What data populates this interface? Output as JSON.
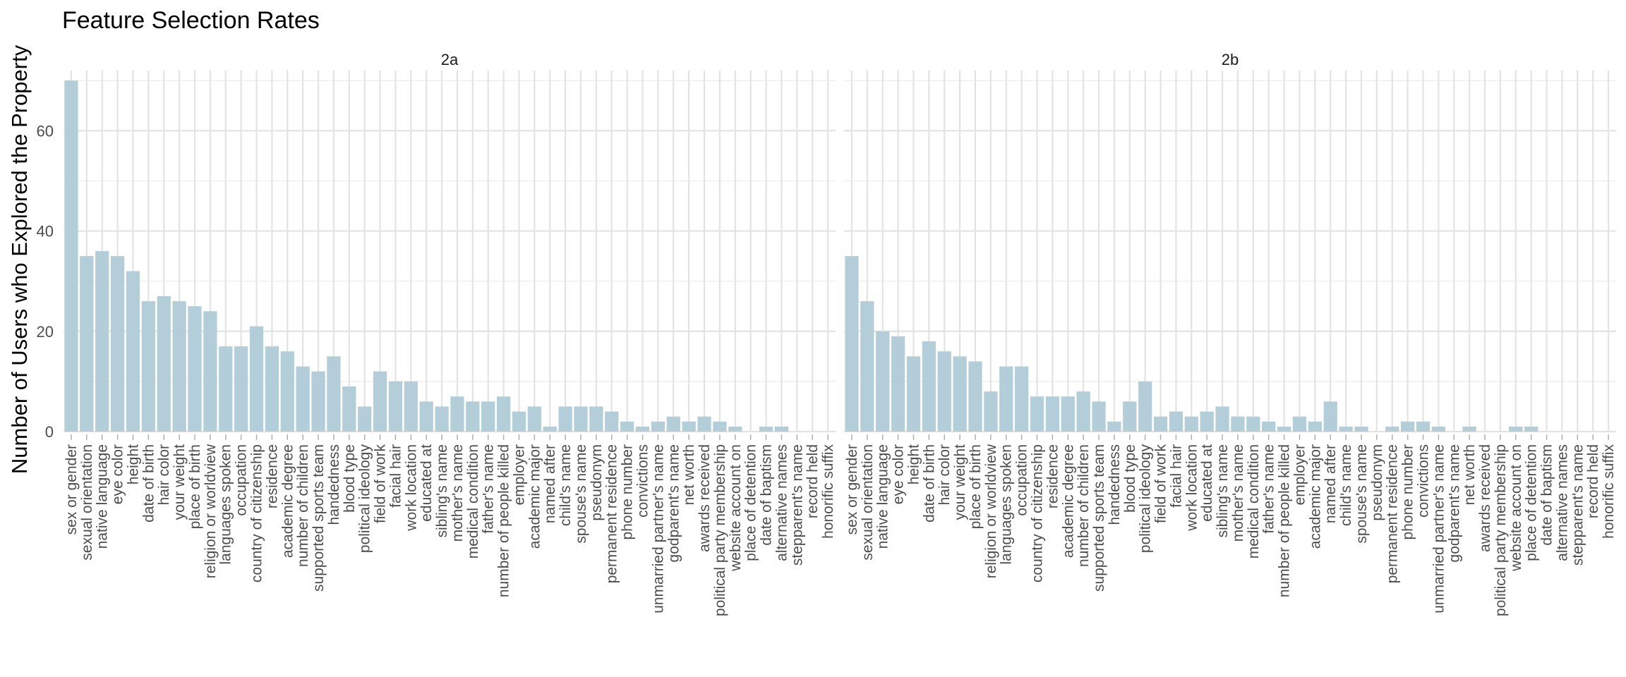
{
  "chart_data": {
    "type": "bar",
    "title": "Feature Selection Rates",
    "xlabel": "",
    "ylabel": "Number of Users who Explored the Property",
    "ylim": [
      0,
      72
    ],
    "yticks": [
      0,
      20,
      40,
      60
    ],
    "grid": true,
    "bar_color": "#b3ced8",
    "categories": [
      "sex or gender",
      "sexual orientation",
      "native language",
      "eye color",
      "height",
      "date of birth",
      "hair color",
      "your weight",
      "place of birth",
      "religion or worldview",
      "languages spoken",
      "occupation",
      "country of citizenship",
      "residence",
      "academic degree",
      "number of children",
      "supported sports team",
      "handedness",
      "blood type",
      "political ideology",
      "field of work",
      "facial hair",
      "work location",
      "educated at",
      "sibling's name",
      "mother's name",
      "medical condition",
      "father's name",
      "number of people killed",
      "employer",
      "academic major",
      "named after",
      "child's name",
      "spouse's name",
      "pseudonym",
      "permanent residence",
      "phone number",
      "convictions",
      "unmarried partner's name",
      "godparent's name",
      "net worth",
      "awards received",
      "political party membership",
      "website account on",
      "place of detention",
      "date of baptism",
      "alternative names",
      "stepparent's name",
      "record held",
      "honorific suffix"
    ],
    "panels": [
      {
        "name": "2a",
        "values": [
          70,
          35,
          36,
          35,
          32,
          26,
          27,
          26,
          25,
          24,
          17,
          17,
          21,
          17,
          16,
          13,
          12,
          15,
          9,
          5,
          12,
          10,
          10,
          6,
          5,
          7,
          6,
          6,
          7,
          4,
          5,
          1,
          5,
          5,
          5,
          4,
          2,
          1,
          2,
          3,
          2,
          3,
          2,
          1,
          0,
          1,
          1,
          0,
          0,
          0
        ]
      },
      {
        "name": "2b",
        "values": [
          35,
          26,
          20,
          19,
          15,
          18,
          16,
          15,
          14,
          8,
          13,
          13,
          7,
          7,
          7,
          8,
          6,
          2,
          6,
          10,
          3,
          4,
          3,
          4,
          5,
          3,
          3,
          2,
          1,
          3,
          2,
          6,
          1,
          1,
          0,
          1,
          2,
          2,
          1,
          0,
          1,
          0,
          0,
          1,
          1,
          0,
          0,
          0,
          0,
          0
        ]
      }
    ]
  }
}
